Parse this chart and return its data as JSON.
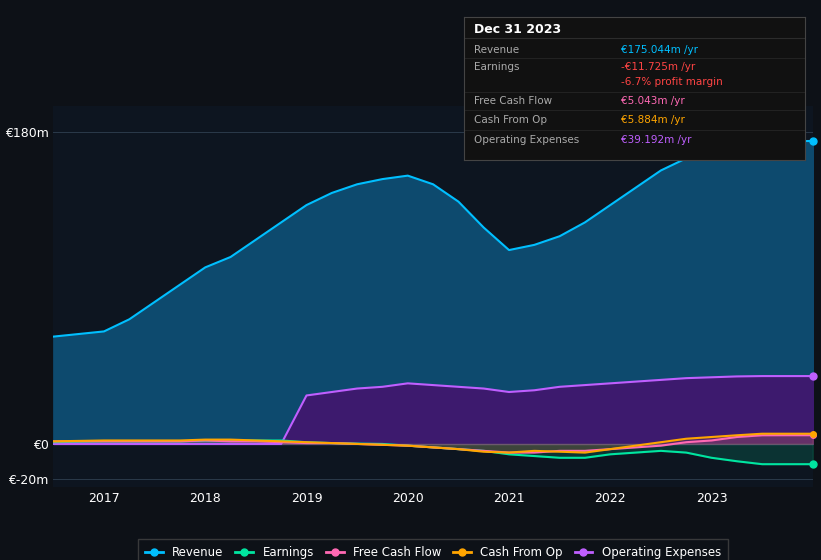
{
  "background_color": "#0d1117",
  "plot_bg_color": "#0d1520",
  "years": [
    2016.5,
    2017,
    2017.25,
    2017.5,
    2017.75,
    2018,
    2018.25,
    2018.5,
    2018.75,
    2019,
    2019.25,
    2019.5,
    2019.75,
    2020,
    2020.25,
    2020.5,
    2020.75,
    2021,
    2021.25,
    2021.5,
    2021.75,
    2022,
    2022.25,
    2022.5,
    2022.75,
    2023,
    2023.25,
    2023.5,
    2023.75,
    2024.0
  ],
  "revenue": [
    62,
    65,
    72,
    82,
    92,
    102,
    108,
    118,
    128,
    138,
    145,
    150,
    153,
    155,
    150,
    140,
    125,
    112,
    115,
    120,
    128,
    138,
    148,
    158,
    165,
    170,
    173,
    175,
    175,
    175
  ],
  "operating_expenses": [
    0,
    0,
    0,
    0,
    0,
    0,
    0,
    0,
    0,
    28,
    30,
    32,
    33,
    35,
    34,
    33,
    32,
    30,
    31,
    33,
    34,
    35,
    36,
    37,
    38,
    38.5,
    39,
    39.2,
    39.2,
    39.2
  ],
  "earnings": [
    1,
    1.5,
    1.5,
    1.5,
    1.5,
    2,
    2,
    2,
    2,
    1,
    0.5,
    0.2,
    0,
    -1,
    -2,
    -3,
    -4,
    -6,
    -7,
    -8,
    -8,
    -6,
    -5,
    -4,
    -5,
    -8,
    -10,
    -11.7,
    -11.7,
    -11.7
  ],
  "free_cash_flow": [
    1.5,
    1.5,
    1.5,
    1.5,
    1.5,
    2,
    1.5,
    1.5,
    1,
    0.5,
    0.5,
    0,
    -0.5,
    -1,
    -2,
    -3,
    -4,
    -5,
    -5,
    -4,
    -4,
    -3,
    -2,
    -1,
    1,
    2,
    4,
    5,
    5.04,
    5.04
  ],
  "cash_from_op": [
    1.5,
    2,
    2,
    2,
    2,
    2.5,
    2.5,
    2,
    1.5,
    1,
    0.5,
    0,
    -0.5,
    -1,
    -2,
    -3,
    -4.5,
    -5,
    -4,
    -4.5,
    -5,
    -3,
    -1,
    1,
    3,
    4,
    5,
    5.9,
    5.9,
    5.9
  ],
  "revenue_color": "#00bfff",
  "revenue_fill": "#0d4a6e",
  "operating_expenses_color": "#bf5fff",
  "operating_expenses_fill": "#3d1a6e",
  "earnings_color": "#00e5a0",
  "free_cash_flow_color": "#ff69b4",
  "cash_from_op_color": "#ffa500",
  "ylim": [
    -25,
    195
  ],
  "xtick_years": [
    2017,
    2018,
    2019,
    2020,
    2021,
    2022,
    2023
  ],
  "grid_color": "#2a3a4a",
  "legend_items": [
    "Revenue",
    "Earnings",
    "Free Cash Flow",
    "Cash From Op",
    "Operating Expenses"
  ],
  "legend_colors": [
    "#00bfff",
    "#00e5a0",
    "#ff69b4",
    "#ffa500",
    "#bf5fff"
  ],
  "info_box_title": "Dec 31 2023",
  "info_rows": [
    {
      "label": "Revenue",
      "value": "€175.044m /yr",
      "value_color": "#00bfff",
      "sep_below": true
    },
    {
      "label": "Earnings",
      "value": "-€11.725m /yr",
      "value_color": "#ff4444",
      "sep_below": false
    },
    {
      "label": "",
      "value": "-6.7% profit margin",
      "value_color": "#ff4444",
      "sep_below": true
    },
    {
      "label": "Free Cash Flow",
      "value": "€5.043m /yr",
      "value_color": "#ff69b4",
      "sep_below": true
    },
    {
      "label": "Cash From Op",
      "value": "€5.884m /yr",
      "value_color": "#ffa500",
      "sep_below": true
    },
    {
      "label": "Operating Expenses",
      "value": "€39.192m /yr",
      "value_color": "#bf5fff",
      "sep_below": false
    }
  ]
}
